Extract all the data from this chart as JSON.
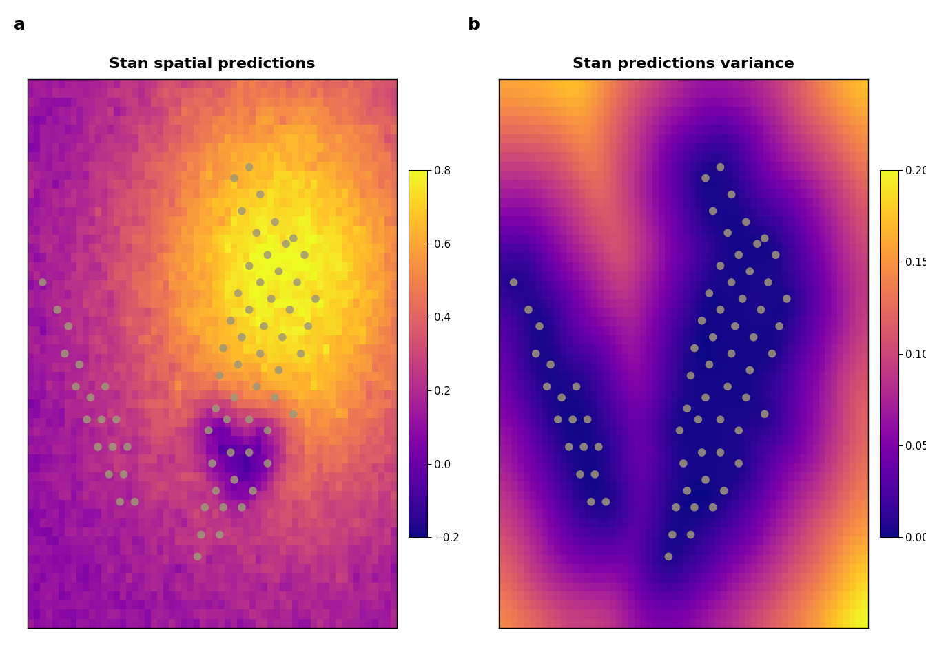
{
  "title_a": "Stan spatial predictions",
  "title_b": "Stan predictions variance",
  "label_a": "a",
  "label_b": "b",
  "vmin_a": -0.2,
  "vmax_a": 0.8,
  "vmin_b": 0.0,
  "vmax_b": 0.2,
  "colorbar_ticks_a": [
    -0.2,
    0.0,
    0.2,
    0.4,
    0.6,
    0.8
  ],
  "colorbar_ticks_b": [
    0.0,
    0.05,
    0.1,
    0.15,
    0.2
  ],
  "grid_size": 60,
  "dot_color": "#a09878",
  "dot_size": 70,
  "dot_alpha": 0.85,
  "background_color": "#ffffff",
  "title_fontsize": 16,
  "label_fontsize": 18,
  "tick_fontsize": 11,
  "noise_seed": 42
}
